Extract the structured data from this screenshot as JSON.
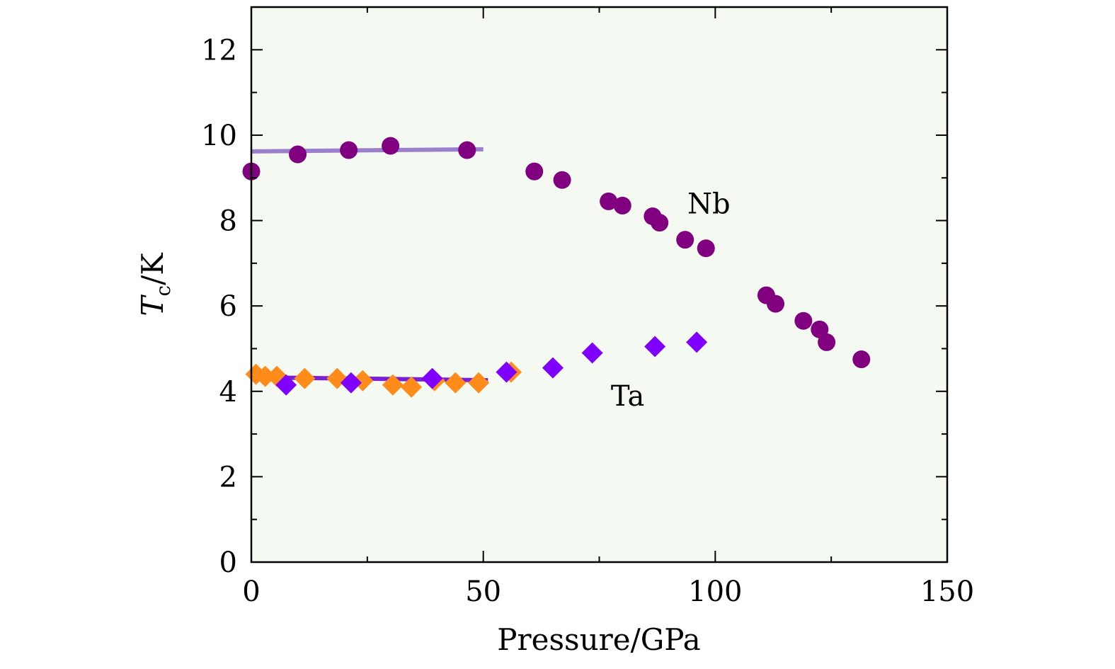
{
  "chart_data": {
    "type": "scatter",
    "xlabel": "Pressure/GPa",
    "ylabel": {
      "main": "T",
      "sub": "c",
      "unit": "/K"
    },
    "xlim": [
      0,
      150
    ],
    "ylim": [
      0,
      13
    ],
    "x_ticks": [
      0,
      50,
      100,
      150
    ],
    "y_ticks": [
      0,
      2,
      4,
      6,
      8,
      10,
      12
    ],
    "x_tick_labels": [
      "0",
      "50",
      "100",
      "150"
    ],
    "y_tick_labels": [
      "0",
      "2",
      "4",
      "6",
      "8",
      "10",
      "12"
    ],
    "grid": false,
    "plot_background": "#f4faf1",
    "annotations": [
      {
        "text": "Nb",
        "x": 94,
        "y": 8.4
      },
      {
        "text": "Ta",
        "x": 77.5,
        "y": 3.9
      }
    ],
    "series": [
      {
        "label": "Nb",
        "marker": "circle",
        "color": "#800080",
        "points": [
          [
            0,
            9.15
          ],
          [
            10,
            9.55
          ],
          [
            21,
            9.65
          ],
          [
            30,
            9.75
          ],
          [
            46.5,
            9.65
          ],
          [
            61,
            9.15
          ],
          [
            67,
            8.95
          ],
          [
            77,
            8.45
          ],
          [
            80,
            8.35
          ],
          [
            86.5,
            8.1
          ],
          [
            88,
            7.95
          ],
          [
            93.5,
            7.55
          ],
          [
            98,
            7.35
          ],
          [
            111,
            6.25
          ],
          [
            113,
            6.05
          ],
          [
            119,
            5.65
          ],
          [
            122.5,
            5.45
          ],
          [
            124,
            5.15
          ],
          [
            131.5,
            4.75
          ]
        ]
      },
      {
        "label": "Ta (orange)",
        "marker": "diamond",
        "color": "#ff8c1a",
        "points": [
          [
            1,
            4.4
          ],
          [
            3,
            4.35
          ],
          [
            5.5,
            4.35
          ],
          [
            11.5,
            4.3
          ],
          [
            18.5,
            4.3
          ],
          [
            24,
            4.25
          ],
          [
            30.5,
            4.15
          ],
          [
            34.5,
            4.1
          ],
          [
            39.5,
            4.25
          ],
          [
            44,
            4.2
          ],
          [
            49,
            4.2
          ],
          [
            56,
            4.45
          ]
        ]
      },
      {
        "label": "Ta (violet)",
        "marker": "diamond",
        "color": "#8000ff",
        "points": [
          [
            7.5,
            4.15
          ],
          [
            21.5,
            4.2
          ],
          [
            39,
            4.3
          ],
          [
            55,
            4.45
          ],
          [
            65,
            4.55
          ],
          [
            73.5,
            4.9
          ],
          [
            87,
            5.05
          ],
          [
            96,
            5.15
          ]
        ]
      }
    ],
    "fit_lines": [
      {
        "color": "#9b7fcc",
        "x": [
          0,
          50
        ],
        "y": [
          9.62,
          9.67
        ]
      },
      {
        "color": "#7a1fd6",
        "x": [
          0,
          51
        ],
        "y": [
          4.33,
          4.26
        ]
      }
    ]
  }
}
